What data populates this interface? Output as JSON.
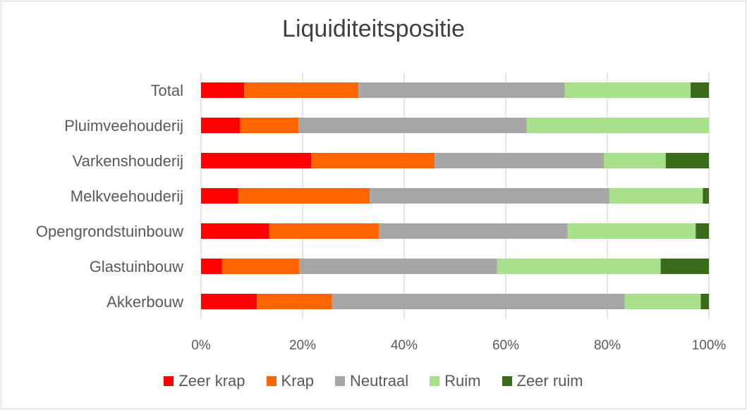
{
  "chart_data": {
    "type": "bar",
    "orientation": "horizontal",
    "stacked": "percent",
    "title": "Liquiditeitspositie",
    "categories": [
      "Total",
      "Pluimveehouderij",
      "Varkenshouderij",
      "Melkveehouderij",
      "Opengrondstuinbouw",
      "Glastuinbouw",
      "Akkerbouw"
    ],
    "series": [
      {
        "name": "Zeer krap",
        "color": "#ff0000",
        "values": [
          8.5,
          7.7,
          21.7,
          7.3,
          13.4,
          4.1,
          11.0
        ]
      },
      {
        "name": "Krap",
        "color": "#ff6600",
        "values": [
          22.5,
          11.5,
          24.3,
          25.9,
          21.6,
          15.3,
          14.8
        ]
      },
      {
        "name": "Neutraal",
        "color": "#a6a6a6",
        "values": [
          40.6,
          44.9,
          33.3,
          47.2,
          37.2,
          38.9,
          57.6
        ]
      },
      {
        "name": "Ruim",
        "color": "#a9e08c",
        "values": [
          24.8,
          35.9,
          12.2,
          18.4,
          25.2,
          32.2,
          15.0
        ]
      },
      {
        "name": "Zeer ruim",
        "color": "#3a6b1a",
        "values": [
          3.6,
          0.0,
          8.5,
          1.2,
          2.6,
          9.5,
          1.6
        ]
      }
    ],
    "xlim": [
      0,
      100
    ],
    "x_ticks": [
      "0%",
      "20%",
      "40%",
      "60%",
      "80%",
      "100%"
    ],
    "grid": true,
    "legend_position": "bottom"
  }
}
